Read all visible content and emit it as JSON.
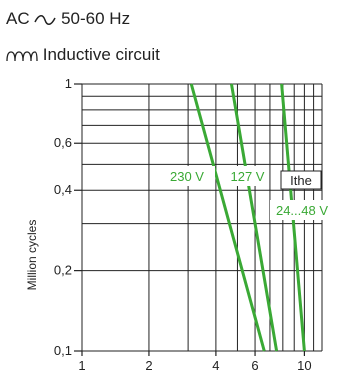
{
  "header": {
    "supply": "AC",
    "supply_symbol_icon": "alternating-current-icon",
    "frequency": "50-60 Hz",
    "circuit_symbol_icon": "inductor-icon",
    "circuit": "Inductive circuit"
  },
  "chart_data": {
    "type": "line",
    "title": "",
    "xlabel": "",
    "ylabel": "Million cycles",
    "x_scale": "log",
    "y_scale": "log",
    "xlim": [
      1,
      12
    ],
    "ylim": [
      0.1,
      1
    ],
    "x_ticks": [
      {
        "value": 1,
        "label": "1"
      },
      {
        "value": 2,
        "label": "2"
      },
      {
        "value": 4,
        "label": "4"
      },
      {
        "value": 6,
        "label": "6"
      },
      {
        "value": 10,
        "label": "10"
      }
    ],
    "y_ticks": [
      {
        "value": 1,
        "label": "1"
      },
      {
        "value": 0.6,
        "label": "0,6"
      },
      {
        "value": 0.4,
        "label": "0,4"
      },
      {
        "value": 0.2,
        "label": "0,2"
      },
      {
        "value": 0.1,
        "label": "0,1"
      }
    ],
    "grid": true,
    "series_color": "#3aa935",
    "series": [
      {
        "label": "230 V",
        "x": [
          3.1,
          6.6
        ],
        "y": [
          1,
          0.1
        ]
      },
      {
        "label": "127 V",
        "x": [
          4.7,
          7.5
        ],
        "y": [
          1,
          0.1
        ]
      },
      {
        "label": "24...48 V",
        "x": [
          7.9,
          10
        ],
        "y": [
          1,
          0.1
        ]
      }
    ],
    "annotations": [
      {
        "text": "Ithe",
        "x": 8.4,
        "y": 0.46,
        "boxed": true
      }
    ]
  }
}
